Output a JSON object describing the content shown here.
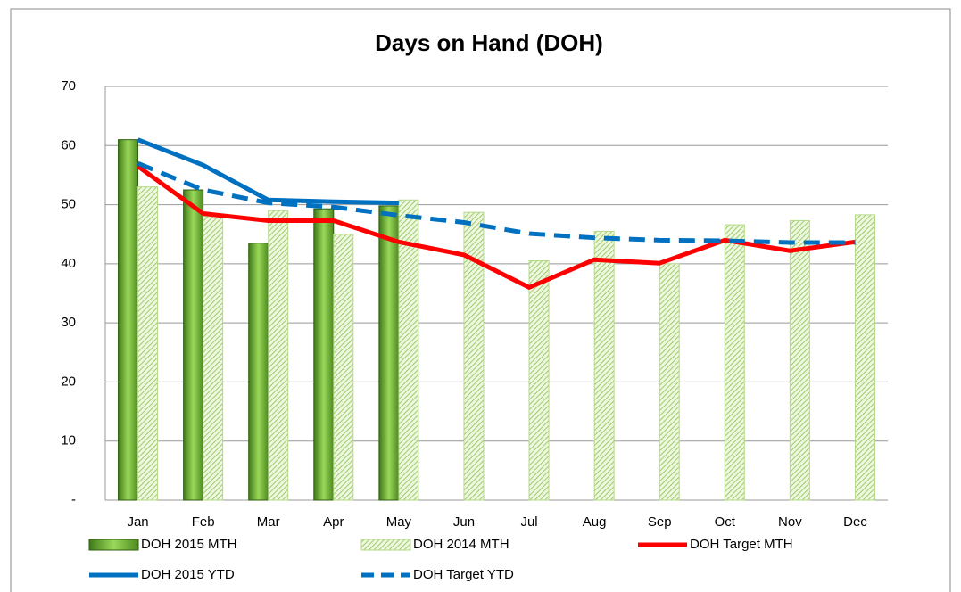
{
  "chart_data": {
    "type": "combo",
    "title": "Days on Hand (DOH)",
    "categories": [
      "Jan",
      "Feb",
      "Mar",
      "Apr",
      "May",
      "Jun",
      "Jul",
      "Aug",
      "Sep",
      "Oct",
      "Nov",
      "Dec"
    ],
    "ylim": [
      0,
      70
    ],
    "yticks": [
      {
        "value": 0,
        "label": "-"
      },
      10,
      20,
      30,
      40,
      50,
      60,
      70
    ],
    "grid": true,
    "legend": "bottom",
    "series": [
      {
        "name": "DOH 2015 MTH",
        "kind": "bar",
        "color": "#7cc242",
        "values": [
          61,
          52.5,
          43.5,
          49.3,
          49.8,
          null,
          null,
          null,
          null,
          null,
          null,
          null
        ]
      },
      {
        "name": "DOH 2014 MTH",
        "kind": "bar",
        "pattern": "hatch",
        "color": "#b5d98a",
        "values": [
          53,
          48,
          49,
          45,
          50.8,
          48.7,
          40.5,
          45.5,
          40,
          46.6,
          47.3,
          48.3
        ]
      },
      {
        "name": "DOH Target MTH",
        "kind": "line",
        "color": "#ff0000",
        "values": [
          56.5,
          48.5,
          47.3,
          47.3,
          43.7,
          41.5,
          36,
          40.7,
          40.1,
          44,
          42.2,
          43.7
        ]
      },
      {
        "name": "DOH 2015 YTD",
        "kind": "line",
        "color": "#0070c0",
        "values": [
          61,
          56.7,
          50.8,
          50.5,
          50.3,
          null,
          null,
          null,
          null,
          null,
          null,
          null
        ]
      },
      {
        "name": "DOH Target YTD",
        "kind": "line",
        "dash": true,
        "color": "#0070c0",
        "values": [
          57,
          52.5,
          50.3,
          49.6,
          48.2,
          47,
          45.1,
          44.4,
          44,
          43.9,
          43.6,
          43.6
        ]
      }
    ]
  }
}
